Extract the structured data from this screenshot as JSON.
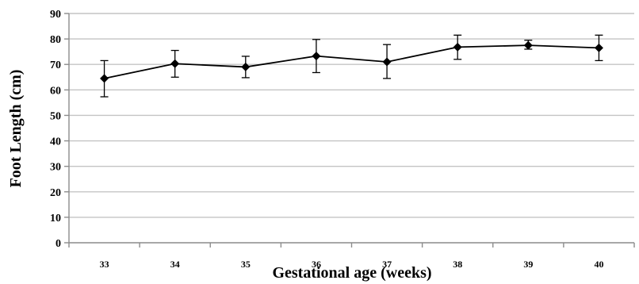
{
  "chart_data": {
    "type": "line",
    "title": "",
    "xlabel": "Gestational age (weeks)",
    "ylabel": "Foot Length (cm)",
    "ylim": [
      0,
      90
    ],
    "yticks": [
      0,
      10,
      20,
      30,
      40,
      50,
      60,
      70,
      80,
      90
    ],
    "grid": "horizontal",
    "categories": [
      "33",
      "34",
      "35",
      "36",
      "37",
      "38",
      "39",
      "40"
    ],
    "series": [
      {
        "values": [
          64.5,
          70.3,
          69.0,
          73.3,
          71.0,
          76.8,
          77.5,
          76.5
        ],
        "error_low": [
          57.3,
          65.0,
          64.8,
          66.8,
          64.5,
          72.0,
          76.0,
          71.5
        ],
        "error_high": [
          71.5,
          75.5,
          73.2,
          79.8,
          77.8,
          81.5,
          79.5,
          81.5
        ]
      }
    ],
    "colors": {
      "line": "#000000",
      "grid": "#c4c4c4",
      "axis": "#8c8c8c"
    }
  }
}
